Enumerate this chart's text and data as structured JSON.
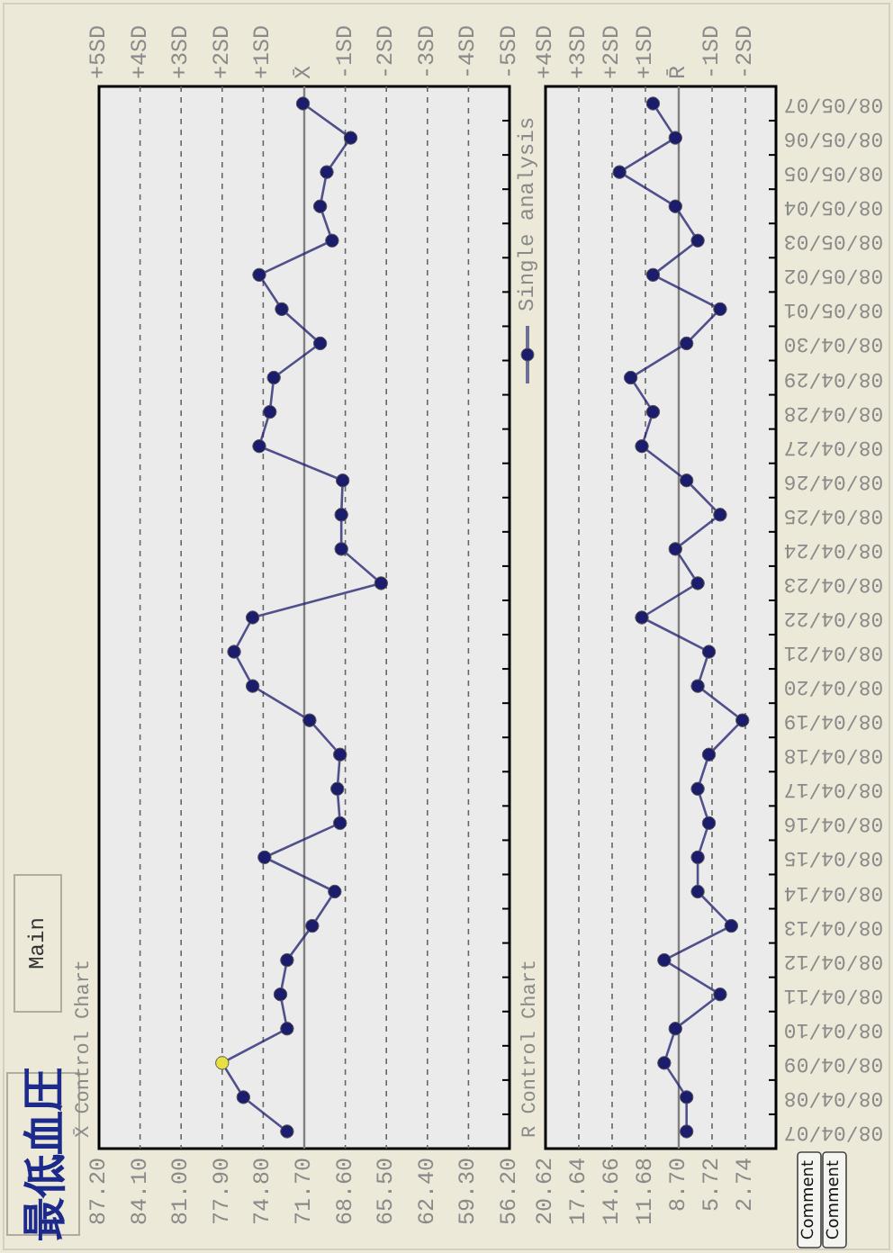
{
  "chart_data": [
    {
      "type": "line",
      "orientation": "horizontal",
      "title": "最低血圧",
      "subtitle": "X̄ Control Chart",
      "annotations": [
        "Main"
      ],
      "categories": [
        null,
        null,
        null,
        null,
        null,
        null,
        null,
        null,
        null,
        null,
        null,
        null,
        null,
        null,
        null,
        null,
        null,
        null,
        null,
        null,
        null,
        null,
        null,
        null,
        null,
        null,
        null,
        null,
        null,
        null,
        null
      ],
      "series": [
        {
          "name": "Single analysis",
          "color": "#1c1c6c",
          "colors": [
            "#1c1c6c",
            "#1c1c6c",
            "#1c1c6c",
            "#1c1c6c",
            "#1c1c6c",
            "#1c1c6c",
            "#1c1c6c",
            "#1c1c6c",
            "#1c1c6c",
            "#1c1c6c",
            "#1c1c6c",
            "#1c1c6c",
            "#1c1c6c",
            "#1c1c6c",
            "#1c1c6c",
            "#1c1c6c",
            "#1c1c6c",
            "#1c1c6c",
            "#1c1c6c",
            "#1c1c6c",
            "#1c1c6c",
            "#1c1c6c",
            "#1c1c6c",
            "#1c1c6c",
            "#1c1c6c",
            "#1c1c6c",
            "#1c1c6c",
            "#1c1c6c",
            "#e8e040",
            "#1c1c6c",
            "#1c1c6c"
          ],
          "values": [
            71.8,
            68.2,
            70.0,
            70.5,
            69.6,
            75.1,
            73.4,
            70.5,
            74.0,
            74.3,
            75.1,
            68.8,
            68.9,
            68.9,
            65.9,
            75.6,
            77.0,
            75.6,
            71.3,
            69.0,
            69.2,
            69.0,
            74.7,
            69.4,
            71.1,
            73.0,
            73.5,
            73.0,
            77.9,
            76.3,
            73.0
          ]
        }
      ],
      "xlim": [
        87.2,
        56.2
      ],
      "xticks": [
        {
          "value": 87.2,
          "label": "87.20"
        },
        {
          "value": 84.1,
          "label": "84.10"
        },
        {
          "value": 81.0,
          "label": "81.00"
        },
        {
          "value": 77.9,
          "label": "77.90"
        },
        {
          "value": 74.8,
          "label": "74.80"
        },
        {
          "value": 71.7,
          "label": "71.70"
        },
        {
          "value": 68.6,
          "label": "68.60"
        },
        {
          "value": 65.5,
          "label": "65.50"
        },
        {
          "value": 62.4,
          "label": "62.40"
        },
        {
          "value": 59.3,
          "label": "59.30"
        },
        {
          "value": 56.2,
          "label": "56.20"
        }
      ],
      "x2lim": [
        5,
        -5
      ],
      "x2ticks": [
        {
          "value": 5,
          "label": "+5SD"
        },
        {
          "value": 4,
          "label": "+4SD"
        },
        {
          "value": 3,
          "label": "+3SD"
        },
        {
          "value": 2,
          "label": "+2SD"
        },
        {
          "value": 1,
          "label": "+1SD"
        },
        {
          "value": 0,
          "label": "X̄"
        },
        {
          "value": -1,
          "label": "-1SD"
        },
        {
          "value": -2,
          "label": "-2SD"
        },
        {
          "value": -3,
          "label": "-3SD"
        },
        {
          "value": -4,
          "label": "-4SD"
        },
        {
          "value": -5,
          "label": "-5SD"
        }
      ],
      "ref_lines": [
        {
          "axis": "x",
          "value": 71.7,
          "color": "#808080"
        }
      ],
      "grid": "x",
      "marker": "circle",
      "legend": "top right",
      "tick_labels": "x"
    },
    {
      "type": "line",
      "orientation": "horizontal",
      "title": "R Control Chart",
      "annotations": [
        "Comment",
        "Comment"
      ],
      "categories": [
        "08/05/07",
        "08/05/06",
        "08/05/05",
        "08/05/04",
        "08/05/03",
        "08/05/02",
        "08/05/01",
        "08/04/30",
        "08/04/29",
        "08/04/28",
        "08/04/27",
        "08/04/26",
        "08/04/25",
        "08/04/24",
        "08/04/23",
        "08/04/22",
        "08/04/21",
        "08/04/20",
        "08/04/19",
        "08/04/18",
        "08/04/17",
        "08/04/16",
        "08/04/15",
        "08/04/14",
        "08/04/13",
        "08/04/12",
        "08/04/11",
        "08/04/10",
        "08/04/09",
        "08/04/08",
        "08/04/07"
      ],
      "series": [
        {
          "color": "#1c1c6c",
          "values": [
            11,
            9,
            14,
            9,
            7,
            11,
            5,
            8,
            13,
            11,
            12,
            8,
            5,
            9,
            7,
            12,
            6,
            7,
            3,
            6,
            7,
            6,
            7,
            7,
            4,
            10,
            5,
            9,
            10,
            8,
            8
          ]
        }
      ],
      "xlim": [
        20.62,
        0
      ],
      "xticks": [
        {
          "value": 20.62,
          "label": "20.62"
        },
        {
          "value": 17.64,
          "label": "17.64"
        },
        {
          "value": 14.66,
          "label": "14.66"
        },
        {
          "value": 11.68,
          "label": "11.68"
        },
        {
          "value": 8.7,
          "label": "8.70"
        },
        {
          "value": 5.72,
          "label": "5.72"
        },
        {
          "value": 2.74,
          "label": "2.74"
        }
      ],
      "x2lim": [
        4,
        -2.92
      ],
      "x2ticks": [
        {
          "value": 4,
          "label": "+4SD"
        },
        {
          "value": 3,
          "label": "+3SD"
        },
        {
          "value": 2,
          "label": "+2SD"
        },
        {
          "value": 1,
          "label": "+1SD"
        },
        {
          "value": 0,
          "label": "R̄"
        },
        {
          "value": -1,
          "label": "-1SD"
        },
        {
          "value": -2,
          "label": "-2SD"
        }
      ],
      "ref_lines": [
        {
          "axis": "x",
          "value": 8.7,
          "color": "#808080"
        }
      ],
      "grid": "x",
      "marker": "circle"
    }
  ]
}
